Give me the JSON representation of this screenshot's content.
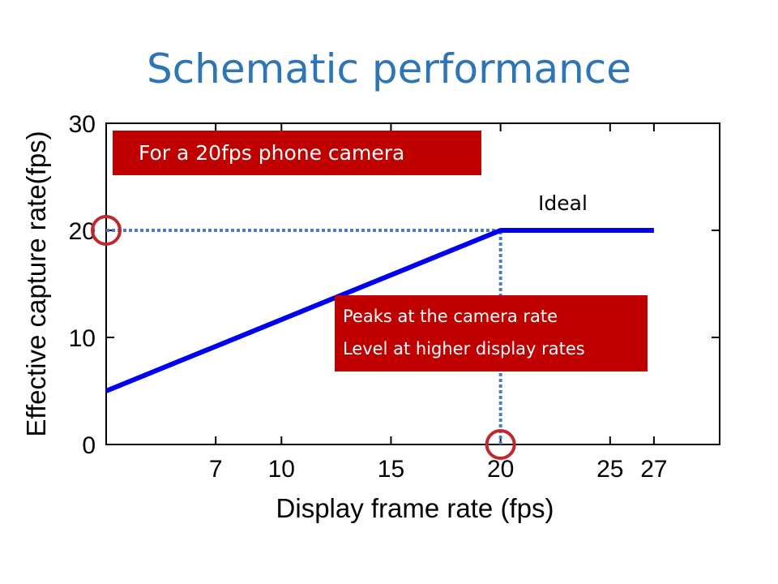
{
  "slide": {
    "title": "Schematic performance"
  },
  "callouts": {
    "camera": "For a 20fps phone camera",
    "peaks_line1": "Peaks at the camera rate",
    "peaks_line2": "Level at higher display rates",
    "ideal": "Ideal"
  },
  "colors": {
    "title": "#2e75b6",
    "series_line": "#0000ee",
    "guide_line": "#4a7cc7",
    "callout_fill": "#c00000",
    "marker_circle": "#c0282d"
  },
  "chart_data": {
    "type": "line",
    "xlabel": "Display frame rate (fps)",
    "ylabel": "Effective capture rate(fps)",
    "xlim": [
      2,
      30
    ],
    "ylim": [
      0,
      30
    ],
    "x_ticks": [
      7,
      10,
      15,
      20,
      25,
      27
    ],
    "y_ticks": [
      0,
      10,
      20,
      30
    ],
    "grid": false,
    "series": [
      {
        "name": "Ideal",
        "x": [
          2,
          20,
          27
        ],
        "y": [
          5,
          20,
          20
        ]
      }
    ],
    "guides": [
      {
        "type": "horizontal",
        "y": 20,
        "x_from": 2,
        "x_to": 20
      },
      {
        "type": "vertical",
        "x": 20,
        "y_from": 0,
        "y_to": 20
      }
    ],
    "markers": [
      {
        "x": 2,
        "y": 20
      },
      {
        "x": 20,
        "y": 0
      }
    ]
  }
}
